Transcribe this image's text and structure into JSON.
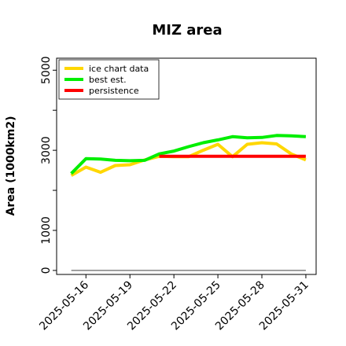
{
  "chart_data": {
    "type": "line",
    "title": "MIZ area",
    "xlabel": "",
    "ylabel": "Area (1000km2)",
    "x_ticks": [
      "2025-05-16",
      "2025-05-19",
      "2025-05-22",
      "2025-05-25",
      "2025-05-28",
      "2025-05-31"
    ],
    "y_ticks": [
      0,
      1000,
      3000,
      5000
    ],
    "ylim": [
      -100,
      5300
    ],
    "xlim": [
      "2025-05-14",
      "2025-05-31.7"
    ],
    "grid": false,
    "legend_position": "top-left",
    "reference_line": {
      "y": 0,
      "x_start": "2025-05-15",
      "x_end": "2025-05-31",
      "color": "#808080"
    },
    "series": [
      {
        "name": "ice chart data",
        "color": "#FFD700",
        "x": [
          "2025-05-15",
          "2025-05-16",
          "2025-05-17",
          "2025-05-18",
          "2025-05-19",
          "2025-05-20",
          "2025-05-21",
          "2025-05-22",
          "2025-05-23",
          "2025-05-24",
          "2025-05-25",
          "2025-05-26",
          "2025-05-27",
          "2025-05-28",
          "2025-05-29",
          "2025-05-30",
          "2025-05-31"
        ],
        "values": [
          2370,
          2580,
          2450,
          2620,
          2640,
          2760,
          2850,
          2840,
          2840,
          3000,
          3150,
          2840,
          3150,
          3190,
          3160,
          2910,
          2760
        ]
      },
      {
        "name": "best est.",
        "color": "#00EE00",
        "x": [
          "2025-05-15",
          "2025-05-16",
          "2025-05-17",
          "2025-05-18",
          "2025-05-19",
          "2025-05-20",
          "2025-05-21",
          "2025-05-22",
          "2025-05-23",
          "2025-05-24",
          "2025-05-25",
          "2025-05-26",
          "2025-05-27",
          "2025-05-28",
          "2025-05-29",
          "2025-05-30",
          "2025-05-31"
        ],
        "values": [
          2420,
          2790,
          2780,
          2750,
          2740,
          2750,
          2910,
          2980,
          3090,
          3190,
          3260,
          3340,
          3310,
          3320,
          3370,
          3360,
          3340
        ]
      },
      {
        "name": "persistence",
        "color": "#FF0000",
        "x": [
          "2025-05-21",
          "2025-05-31"
        ],
        "values": [
          2850,
          2850
        ]
      }
    ]
  }
}
